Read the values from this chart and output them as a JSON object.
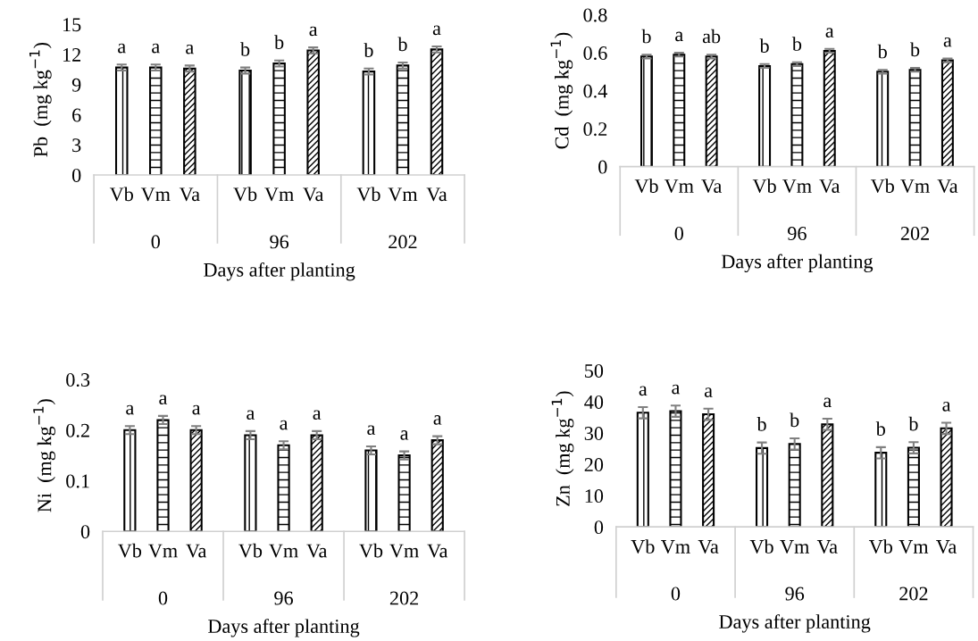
{
  "chart_data": [
    {
      "type": "bar",
      "categories": [
        "0",
        "96",
        "202"
      ],
      "xlabel": "Days after planting",
      "ylabel": "Pb  (mg kg$^{−1}$)",
      "ylim": [
        0,
        15
      ],
      "yticks": [
        0,
        3,
        6,
        9,
        12,
        15
      ],
      "series": [
        {
          "name": "Vb",
          "color": "#000000",
          "values": [
            10.7,
            10.4,
            10.3
          ],
          "errors": [
            0.3,
            0.3,
            0.3
          ],
          "value_labels": [
            "a",
            "b",
            "b"
          ]
        },
        {
          "name": "Vm",
          "color": "#000000",
          "values": [
            10.7,
            11.1,
            10.9
          ],
          "errors": [
            0.3,
            0.3,
            0.3
          ],
          "value_labels": [
            "a",
            "b",
            "b"
          ]
        },
        {
          "name": "Va",
          "color": "#000000",
          "values": [
            10.6,
            12.4,
            12.5
          ],
          "errors": [
            0.3,
            0.3,
            0.3
          ],
          "value_labels": [
            "a",
            "a",
            "a"
          ]
        }
      ]
    },
    {
      "type": "bar",
      "categories": [
        "0",
        "96",
        "202"
      ],
      "xlabel": "Days after planting",
      "ylabel": "Cd  (mg kg$^{−1}$)",
      "ylim": [
        0,
        0.8
      ],
      "yticks": [
        0,
        0.2,
        0.4,
        0.6,
        0.8
      ],
      "series": [
        {
          "name": "Vb",
          "color": "#000000",
          "values": [
            0.58,
            0.53,
            0.5
          ],
          "errors": [
            0.01,
            0.01,
            0.01
          ],
          "value_labels": [
            "b",
            "b",
            "b"
          ]
        },
        {
          "name": "Vm",
          "color": "#000000",
          "values": [
            0.59,
            0.54,
            0.51
          ],
          "errors": [
            0.01,
            0.01,
            0.01
          ],
          "value_labels": [
            "a",
            "b",
            "b"
          ]
        },
        {
          "name": "Va",
          "color": "#000000",
          "values": [
            0.58,
            0.61,
            0.56
          ],
          "errors": [
            0.01,
            0.01,
            0.01
          ],
          "value_labels": [
            "ab",
            "a",
            "a"
          ]
        }
      ]
    },
    {
      "type": "bar",
      "categories": [
        "0",
        "96",
        "202"
      ],
      "xlabel": "Days after planting",
      "ylabel": "Ni  (mg kg$^{−1}$)",
      "ylim": [
        0,
        0.3
      ],
      "yticks": [
        0,
        0.1,
        0.2,
        0.3
      ],
      "series": [
        {
          "name": "Vb",
          "color": "#000000",
          "values": [
            0.2,
            0.19,
            0.16
          ],
          "errors": [
            0.008,
            0.008,
            0.008
          ],
          "value_labels": [
            "a",
            "a",
            "a"
          ]
        },
        {
          "name": "Vm",
          "color": "#000000",
          "values": [
            0.22,
            0.17,
            0.15
          ],
          "errors": [
            0.008,
            0.008,
            0.008
          ],
          "value_labels": [
            "a",
            "a",
            "a"
          ]
        },
        {
          "name": "Va",
          "color": "#000000",
          "values": [
            0.2,
            0.19,
            0.18
          ],
          "errors": [
            0.008,
            0.008,
            0.008
          ],
          "value_labels": [
            "a",
            "a",
            "a"
          ]
        }
      ]
    },
    {
      "type": "bar",
      "categories": [
        "0",
        "96",
        "202"
      ],
      "xlabel": "Days after planting",
      "ylabel": "Zn  (mg kg$^{−1}$)",
      "ylim": [
        0,
        50
      ],
      "yticks": [
        0,
        10,
        20,
        30,
        40,
        50
      ],
      "series": [
        {
          "name": "Vb",
          "color": "#000000",
          "values": [
            36.5,
            25.2,
            23.7
          ],
          "errors": [
            1.8,
            1.8,
            1.8
          ],
          "value_labels": [
            "a",
            "b",
            "b"
          ]
        },
        {
          "name": "Vm",
          "color": "#000000",
          "values": [
            37.0,
            26.5,
            25.3
          ],
          "errors": [
            1.8,
            1.8,
            1.8
          ],
          "value_labels": [
            "a",
            "b",
            "b"
          ]
        },
        {
          "name": "Va",
          "color": "#000000",
          "values": [
            36.0,
            32.8,
            31.5
          ],
          "errors": [
            1.8,
            1.8,
            1.8
          ],
          "value_labels": [
            "a",
            "a",
            "a"
          ]
        }
      ]
    }
  ]
}
